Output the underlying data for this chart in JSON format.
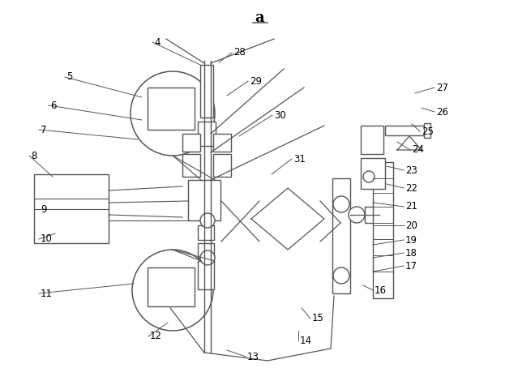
{
  "title": "a",
  "bg_color": "#ffffff",
  "line_color": "#555555",
  "lw": 1.0,
  "labels_data": [
    [
      "4",
      190,
      52,
      247,
      80
    ],
    [
      "5",
      82,
      95,
      175,
      120
    ],
    [
      "6",
      62,
      130,
      175,
      148
    ],
    [
      "7",
      50,
      160,
      170,
      172
    ],
    [
      "8",
      38,
      192,
      65,
      218
    ],
    [
      "9",
      50,
      258,
      85,
      258
    ],
    [
      "10",
      50,
      295,
      68,
      288
    ],
    [
      "11",
      50,
      362,
      165,
      350
    ],
    [
      "12",
      185,
      415,
      207,
      398
    ],
    [
      "13",
      305,
      440,
      280,
      432
    ],
    [
      "14",
      370,
      420,
      368,
      408
    ],
    [
      "15",
      385,
      393,
      372,
      380
    ],
    [
      "16",
      462,
      358,
      448,
      352
    ],
    [
      "17",
      500,
      328,
      460,
      335
    ],
    [
      "18",
      500,
      312,
      460,
      318
    ],
    [
      "19",
      500,
      296,
      460,
      302
    ],
    [
      "20",
      500,
      278,
      460,
      278
    ],
    [
      "21",
      500,
      255,
      460,
      250
    ],
    [
      "22",
      500,
      232,
      477,
      227
    ],
    [
      "23",
      500,
      210,
      477,
      205
    ],
    [
      "24",
      508,
      185,
      490,
      175
    ],
    [
      "25",
      520,
      162,
      508,
      153
    ],
    [
      "26",
      538,
      138,
      520,
      133
    ],
    [
      "27",
      538,
      108,
      512,
      115
    ],
    [
      "28",
      288,
      65,
      270,
      77
    ],
    [
      "29",
      308,
      100,
      280,
      118
    ],
    [
      "30",
      338,
      142,
      295,
      168
    ],
    [
      "31",
      362,
      196,
      335,
      215
    ]
  ]
}
